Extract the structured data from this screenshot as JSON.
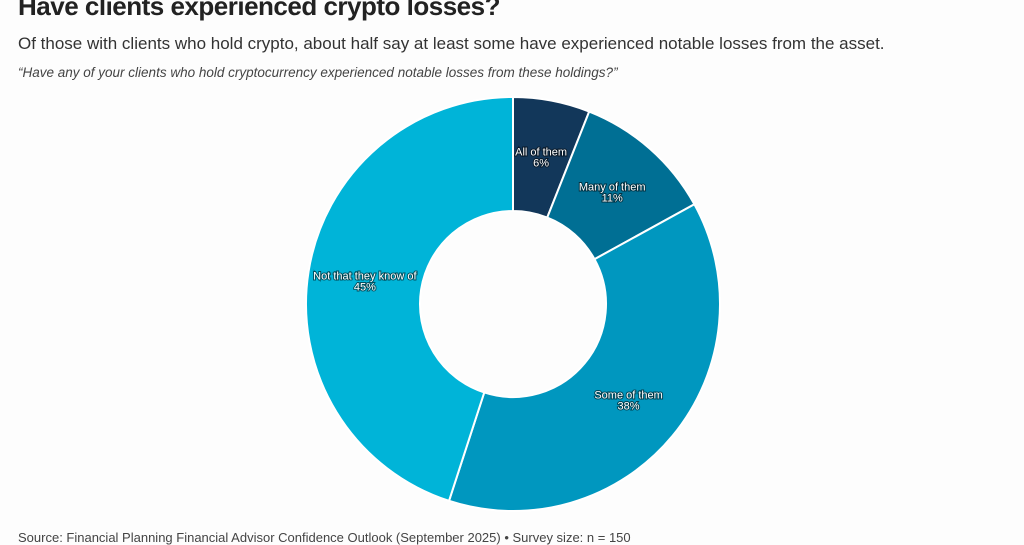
{
  "chart_data": {
    "type": "pie",
    "donut": true,
    "title": "Have clients experienced crypto losses?",
    "subtitle": "Of those with clients who hold crypto, about half say at least some have experienced notable losses from the asset.",
    "question": "“Have any of your clients who hold cryptocurrency experienced notable losses from these holdings?”",
    "source": "Source: Financial Planning Financial Advisor Confidence Outlook (September 2025) • Survey size: n = 150",
    "slices": [
      {
        "label": "All of them",
        "value": 6,
        "display": "6%",
        "color": "#12375a"
      },
      {
        "label": "Many of them",
        "value": 11,
        "display": "11%",
        "color": "#006f94"
      },
      {
        "label": "Some of them",
        "value": 38,
        "display": "38%",
        "color": "#0097bf"
      },
      {
        "label": "Not that they know of",
        "value": 45,
        "display": "45%",
        "color": "#00b4d8"
      }
    ]
  }
}
